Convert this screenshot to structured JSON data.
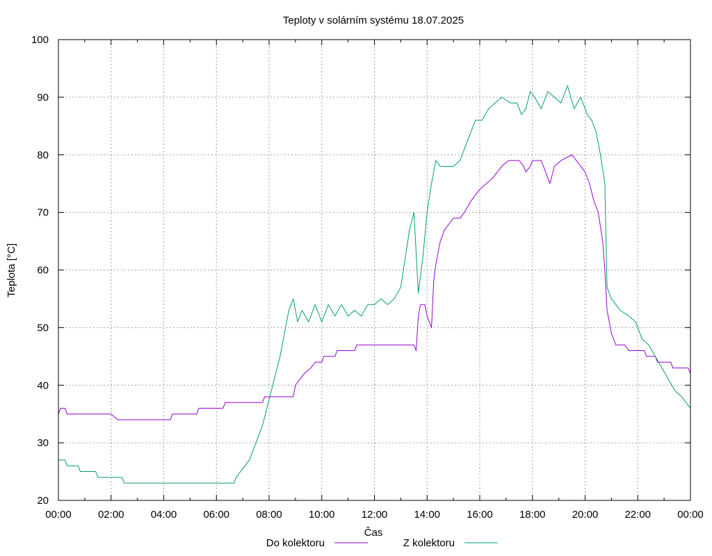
{
  "chart_data": {
    "type": "line",
    "title": "Teploty v solárním systému 18.07.2025",
    "xlabel": "Čas",
    "ylabel": "Teplota [°C]",
    "ylim": [
      20,
      100
    ],
    "xlim": [
      "00:00",
      "24:00"
    ],
    "yticks": [
      20,
      30,
      40,
      50,
      60,
      70,
      80,
      90,
      100
    ],
    "xtick_labels": [
      "00:00",
      "02:00",
      "04:00",
      "06:00",
      "08:00",
      "10:00",
      "12:00",
      "14:00",
      "16:00",
      "18:00",
      "20:00",
      "22:00",
      "00:00"
    ],
    "grid": true,
    "legend_position": "bottom",
    "series": [
      {
        "name": "Do kolektoru",
        "color": "#9400d3",
        "points": [
          [
            "00:00",
            35
          ],
          [
            "00:05",
            36
          ],
          [
            "00:15",
            36
          ],
          [
            "00:20",
            35
          ],
          [
            "02:00",
            35
          ],
          [
            "02:15",
            34
          ],
          [
            "04:15",
            34
          ],
          [
            "04:20",
            35
          ],
          [
            "05:15",
            35
          ],
          [
            "05:20",
            36
          ],
          [
            "06:15",
            36
          ],
          [
            "06:20",
            37
          ],
          [
            "07:45",
            37
          ],
          [
            "07:50",
            38
          ],
          [
            "08:55",
            38
          ],
          [
            "09:00",
            40
          ],
          [
            "09:10",
            41
          ],
          [
            "09:20",
            42
          ],
          [
            "09:35",
            43
          ],
          [
            "09:45",
            44
          ],
          [
            "10:00",
            44
          ],
          [
            "10:05",
            45
          ],
          [
            "10:30",
            45
          ],
          [
            "10:35",
            46
          ],
          [
            "11:15",
            46
          ],
          [
            "11:20",
            47
          ],
          [
            "13:30",
            47
          ],
          [
            "13:35",
            46
          ],
          [
            "13:40",
            52
          ],
          [
            "13:45",
            54
          ],
          [
            "13:55",
            54
          ],
          [
            "14:00",
            52
          ],
          [
            "14:10",
            50
          ],
          [
            "14:15",
            58
          ],
          [
            "14:20",
            61
          ],
          [
            "14:30",
            65
          ],
          [
            "14:40",
            67
          ],
          [
            "14:50",
            68
          ],
          [
            "15:00",
            69
          ],
          [
            "15:15",
            69
          ],
          [
            "15:25",
            70
          ],
          [
            "15:40",
            72
          ],
          [
            "15:50",
            73
          ],
          [
            "16:00",
            74
          ],
          [
            "16:15",
            75
          ],
          [
            "16:30",
            76
          ],
          [
            "16:40",
            77
          ],
          [
            "16:50",
            78
          ],
          [
            "17:05",
            79
          ],
          [
            "17:30",
            79
          ],
          [
            "17:40",
            78
          ],
          [
            "17:45",
            77
          ],
          [
            "17:55",
            78
          ],
          [
            "18:00",
            79
          ],
          [
            "18:20",
            79
          ],
          [
            "18:30",
            77
          ],
          [
            "18:40",
            75
          ],
          [
            "18:50",
            78
          ],
          [
            "19:05",
            79
          ],
          [
            "19:30",
            80
          ],
          [
            "19:40",
            79
          ],
          [
            "19:50",
            78
          ],
          [
            "20:00",
            77
          ],
          [
            "20:10",
            75
          ],
          [
            "20:20",
            72
          ],
          [
            "20:30",
            70
          ],
          [
            "20:40",
            65
          ],
          [
            "20:45",
            60
          ],
          [
            "20:50",
            53
          ],
          [
            "21:00",
            49
          ],
          [
            "21:10",
            47
          ],
          [
            "21:30",
            47
          ],
          [
            "21:40",
            46
          ],
          [
            "22:15",
            46
          ],
          [
            "22:20",
            45
          ],
          [
            "22:40",
            45
          ],
          [
            "22:45",
            44
          ],
          [
            "23:15",
            44
          ],
          [
            "23:20",
            43
          ],
          [
            "23:55",
            43
          ],
          [
            "24:00",
            42
          ]
        ]
      },
      {
        "name": "Z kolektoru",
        "color": "#009e73",
        "points": [
          [
            "00:00",
            27
          ],
          [
            "00:15",
            27
          ],
          [
            "00:20",
            26
          ],
          [
            "00:45",
            26
          ],
          [
            "00:50",
            25
          ],
          [
            "01:25",
            25
          ],
          [
            "01:30",
            24
          ],
          [
            "02:25",
            24
          ],
          [
            "02:30",
            23
          ],
          [
            "06:40",
            23
          ],
          [
            "06:45",
            24
          ],
          [
            "06:55",
            25
          ],
          [
            "07:05",
            26
          ],
          [
            "07:15",
            27
          ],
          [
            "07:25",
            29
          ],
          [
            "07:35",
            31
          ],
          [
            "07:45",
            33
          ],
          [
            "07:55",
            36
          ],
          [
            "08:05",
            39
          ],
          [
            "08:15",
            42
          ],
          [
            "08:25",
            45
          ],
          [
            "08:35",
            49
          ],
          [
            "08:45",
            53
          ],
          [
            "08:55",
            55
          ],
          [
            "09:05",
            51
          ],
          [
            "09:15",
            53
          ],
          [
            "09:30",
            51
          ],
          [
            "09:45",
            54
          ],
          [
            "10:00",
            51
          ],
          [
            "10:15",
            54
          ],
          [
            "10:30",
            52
          ],
          [
            "10:45",
            54
          ],
          [
            "11:00",
            52
          ],
          [
            "11:15",
            53
          ],
          [
            "11:30",
            52
          ],
          [
            "11:45",
            54
          ],
          [
            "12:00",
            54
          ],
          [
            "12:15",
            55
          ],
          [
            "12:30",
            54
          ],
          [
            "12:45",
            55
          ],
          [
            "13:00",
            57
          ],
          [
            "13:10",
            62
          ],
          [
            "13:20",
            67
          ],
          [
            "13:30",
            70
          ],
          [
            "13:40",
            56
          ],
          [
            "13:50",
            62
          ],
          [
            "14:00",
            70
          ],
          [
            "14:10",
            75
          ],
          [
            "14:20",
            79
          ],
          [
            "14:30",
            78
          ],
          [
            "14:45",
            78
          ],
          [
            "15:00",
            78
          ],
          [
            "15:15",
            79
          ],
          [
            "15:30",
            82
          ],
          [
            "15:40",
            84
          ],
          [
            "15:50",
            86
          ],
          [
            "16:05",
            86
          ],
          [
            "16:20",
            88
          ],
          [
            "16:35",
            89
          ],
          [
            "16:50",
            90
          ],
          [
            "17:10",
            89
          ],
          [
            "17:25",
            89
          ],
          [
            "17:35",
            87
          ],
          [
            "17:45",
            88
          ],
          [
            "17:55",
            91
          ],
          [
            "18:05",
            90
          ],
          [
            "18:20",
            88
          ],
          [
            "18:35",
            91
          ],
          [
            "18:50",
            90
          ],
          [
            "19:05",
            89
          ],
          [
            "19:20",
            92
          ],
          [
            "19:35",
            88
          ],
          [
            "19:50",
            90
          ],
          [
            "20:05",
            87
          ],
          [
            "20:15",
            86
          ],
          [
            "20:25",
            84
          ],
          [
            "20:35",
            80
          ],
          [
            "20:45",
            75
          ],
          [
            "20:50",
            57
          ],
          [
            "21:00",
            55
          ],
          [
            "21:10",
            54
          ],
          [
            "21:20",
            53
          ],
          [
            "21:40",
            52
          ],
          [
            "21:55",
            51
          ],
          [
            "22:10",
            48
          ],
          [
            "22:25",
            47
          ],
          [
            "22:40",
            45
          ],
          [
            "22:55",
            43
          ],
          [
            "23:10",
            41
          ],
          [
            "23:25",
            39
          ],
          [
            "23:40",
            38
          ],
          [
            "23:50",
            37
          ],
          [
            "24:00",
            36
          ]
        ]
      }
    ]
  }
}
